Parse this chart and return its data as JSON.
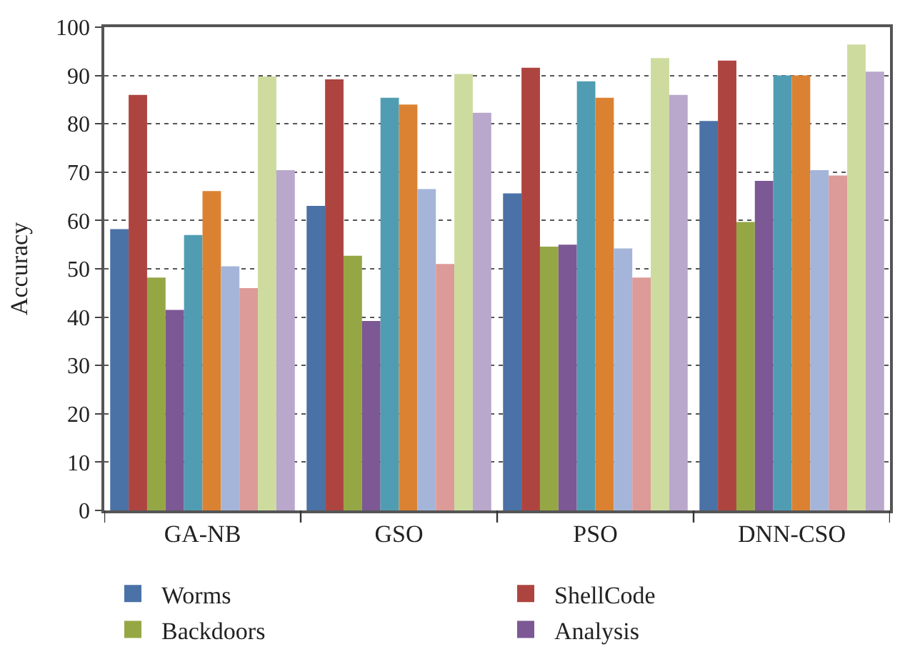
{
  "chart_data": {
    "type": "bar",
    "ylabel": "Accuracy",
    "categories": [
      "GA-NB",
      "GSO",
      "PSO",
      "DNN-CSO"
    ],
    "series": [
      {
        "name": "Worms",
        "color": "#4a72a6",
        "values": [
          58.2,
          63,
          65.6,
          80.6
        ]
      },
      {
        "name": "ShellCode",
        "color": "#ae4440",
        "values": [
          86,
          89.2,
          91.6,
          93.1
        ]
      },
      {
        "name": "Backdoors",
        "color": "#95a745",
        "values": [
          48.2,
          52.7,
          54.6,
          59.7
        ]
      },
      {
        "name": "Analysis",
        "color": "#7c5894",
        "values": [
          41.5,
          39.2,
          55,
          68.2
        ]
      },
      {
        "color": "#509db3",
        "values": [
          57,
          85.4,
          88.8,
          90
        ]
      },
      {
        "color": "#db8232",
        "values": [
          66.1,
          84,
          85.4,
          90
        ]
      },
      {
        "color": "#a5b5d9",
        "values": [
          50.5,
          66.5,
          54.2,
          70.4
        ]
      },
      {
        "color": "#dc9a99",
        "values": [
          46,
          51,
          48.2,
          69.3
        ]
      },
      {
        "color": "#cedb9e",
        "values": [
          89.8,
          90.3,
          93.6,
          96.4
        ]
      },
      {
        "color": "#b9a7cc",
        "values": [
          70.4,
          82.3,
          86,
          90.8
        ]
      }
    ],
    "ylim": [
      0,
      100
    ],
    "yticks": [
      0,
      10,
      20,
      30,
      40,
      50,
      60,
      70,
      80,
      90,
      100
    ],
    "grid": "y",
    "legend": "bottom"
  }
}
